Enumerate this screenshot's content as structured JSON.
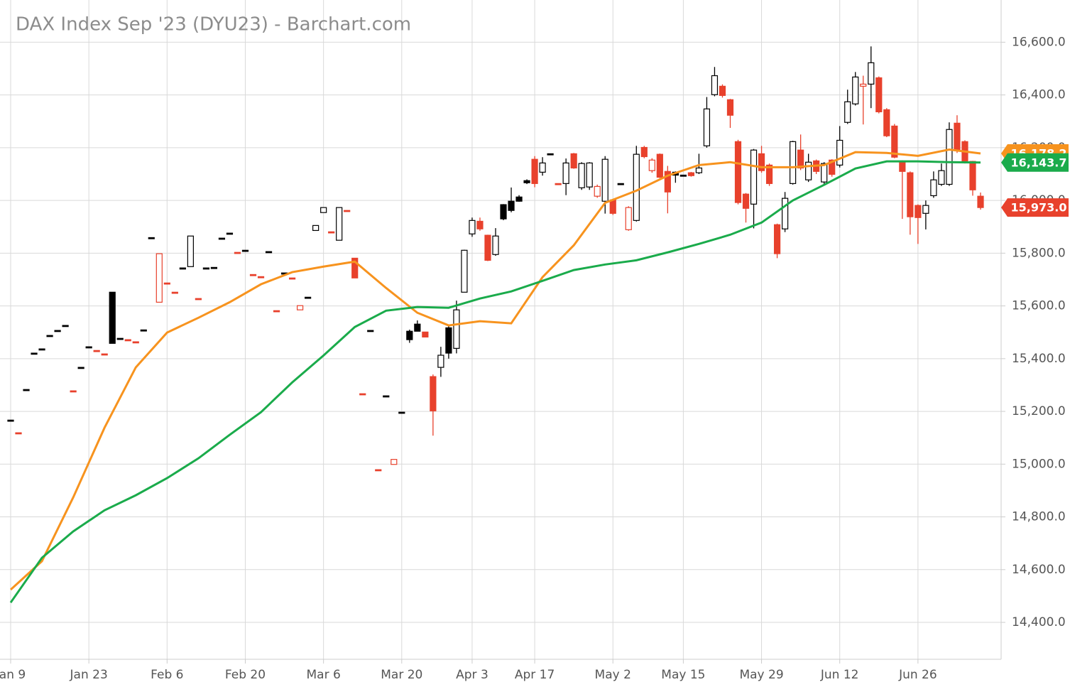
{
  "chart_data": {
    "type": "candlestick",
    "title": "DAX Index Sep '23 (DYU23) - Barchart.com",
    "categories": [
      "Jan 9",
      null,
      null,
      null,
      null,
      null,
      null,
      null,
      null,
      null,
      "Jan 23",
      null,
      null,
      null,
      null,
      null,
      null,
      null,
      null,
      null,
      "Feb 6",
      null,
      null,
      null,
      null,
      null,
      null,
      null,
      null,
      null,
      "Feb 20",
      null,
      null,
      null,
      null,
      null,
      null,
      null,
      null,
      null,
      "Mar 6",
      null,
      null,
      null,
      null,
      null,
      null,
      null,
      null,
      null,
      "Mar 20",
      null,
      null,
      null,
      null,
      null,
      null,
      null,
      null,
      "Apr 3",
      null,
      null,
      null,
      null,
      null,
      null,
      null,
      "Apr 17",
      null,
      null,
      null,
      null,
      null,
      null,
      null,
      null,
      null,
      "May 2",
      null,
      null,
      null,
      null,
      null,
      null,
      null,
      null,
      "May 15",
      null,
      null,
      null,
      null,
      null,
      null,
      null,
      null,
      null,
      "May 29",
      null,
      null,
      null,
      null,
      null,
      null,
      null,
      null,
      null,
      "Jun 12",
      null,
      null,
      null,
      null,
      null,
      null,
      null,
      null,
      null,
      "Jun 26",
      null,
      null,
      null,
      null,
      null,
      null,
      null,
      null
    ],
    "open": [
      15167,
      15119,
      15283,
      15421,
      15437,
      15488,
      15507,
      15526,
      15278,
      15367,
      15445,
      15431,
      15418,
      15652,
      15477,
      15472,
      15464,
      15509,
      15859,
      15614,
      15687,
      15652,
      15744,
      15749,
      15628,
      15744,
      15746,
      15857,
      15876,
      15803,
      15811,
      15719,
      15711,
      15806,
      15582,
      15725,
      15706,
      15585,
      15633,
      15886,
      15954,
      15881,
      15849,
      15962,
      15781,
      15267,
      15507,
      14979,
      15259,
      14999,
      15197,
      15504,
      15531,
      15501,
      15332,
      15367,
      15517,
      15439,
      15652,
      15873,
      15921,
      15868,
      15795,
      15984,
      15997,
      16013,
      16075,
      16156,
      16107,
      16177,
      16064,
      16064,
      16177,
      16048,
      16051,
      16016,
      15997,
      16002,
      16064,
      15889,
      15924,
      16201,
      16113,
      16175,
      16110,
      16107,
      16096,
      16105,
      16105,
      16207,
      16401,
      16433,
      16382,
      16223,
      16024,
      15986,
      16177,
      16134,
      15908,
      15892,
      16064,
      16191,
      16078,
      16150,
      16070,
      16153,
      16134,
      16296,
      16366,
      16433,
      16441,
      16465,
      16344,
      16282,
      16148,
      16105,
      15981,
      15951,
      16018,
      16061,
      16061,
      16293,
      16223,
      16148,
      16016
    ],
    "high": [
      15167,
      15119,
      15283,
      15421,
      15437,
      15488,
      15507,
      15526,
      15278,
      15367,
      15445,
      15431,
      15418,
      15652,
      15477,
      15472,
      15464,
      15509,
      15859,
      15798,
      15687,
      15652,
      15744,
      15865,
      15628,
      15744,
      15746,
      15857,
      15876,
      15803,
      15811,
      15719,
      15711,
      15806,
      15582,
      15725,
      15706,
      15601,
      15633,
      15905,
      15973,
      15881,
      15973,
      15962,
      15781,
      15267,
      15507,
      14979,
      15259,
      15018,
      15197,
      15510,
      15545,
      15501,
      15340,
      15445,
      15523,
      15620,
      15813,
      15935,
      15935,
      15870,
      15895,
      15986,
      16049,
      16020,
      16080,
      16168,
      16164,
      16177,
      16064,
      16159,
      16180,
      16145,
      16145,
      16060,
      16168,
      16005,
      16064,
      15978,
      16207,
      16207,
      16160,
      16178,
      16131,
      16110,
      16096,
      16108,
      16177,
      16392,
      16506,
      16440,
      16385,
      16230,
      16028,
      16195,
      16207,
      16140,
      15912,
      16032,
      16226,
      16250,
      16177,
      16155,
      16145,
      16156,
      16282,
      16420,
      16487,
      16473,
      16584,
      16470,
      16350,
      16290,
      16152,
      16110,
      15985,
      16000,
      16110,
      16140,
      16296,
      16323,
      16228,
      16150,
      16030
    ],
    "low": [
      15167,
      15119,
      15283,
      15421,
      15437,
      15488,
      15507,
      15526,
      15278,
      15367,
      15445,
      15431,
      15418,
      15458,
      15477,
      15472,
      15464,
      15509,
      15859,
      15614,
      15687,
      15652,
      15744,
      15749,
      15628,
      15744,
      15746,
      15857,
      15876,
      15803,
      15811,
      15719,
      15711,
      15806,
      15582,
      15725,
      15706,
      15585,
      15633,
      15886,
      15954,
      15881,
      15849,
      15962,
      15706,
      15267,
      15507,
      14979,
      15259,
      14999,
      15197,
      15460,
      15504,
      15482,
      15108,
      15331,
      15400,
      15420,
      15652,
      15862,
      15885,
      15770,
      15790,
      15925,
      15955,
      15995,
      16062,
      16050,
      16094,
      16177,
      16064,
      16020,
      16120,
      16040,
      16040,
      16010,
      15950,
      15945,
      16064,
      15885,
      15920,
      16160,
      16105,
      16085,
      15951,
      16067,
      16096,
      16090,
      16100,
      16200,
      16395,
      16390,
      16275,
      15985,
      15916,
      15894,
      16105,
      16055,
      15781,
      15880,
      16060,
      16115,
      16070,
      16100,
      16060,
      16090,
      16125,
      16290,
      16360,
      16288,
      16350,
      16330,
      16240,
      16160,
      15930,
      15870,
      15835,
      15890,
      16010,
      16055,
      16055,
      16180,
      16140,
      16018,
      15965
    ],
    "close": [
      15167,
      15119,
      15283,
      15421,
      15437,
      15488,
      15507,
      15526,
      15278,
      15367,
      15445,
      15431,
      15418,
      15458,
      15477,
      15472,
      15464,
      15509,
      15859,
      15798,
      15687,
      15652,
      15744,
      15865,
      15628,
      15744,
      15746,
      15857,
      15876,
      15803,
      15811,
      15719,
      15711,
      15806,
      15582,
      15725,
      15706,
      15601,
      15633,
      15905,
      15973,
      15881,
      15973,
      15962,
      15706,
      15267,
      15507,
      14979,
      15259,
      15018,
      15197,
      15472,
      15504,
      15482,
      15202,
      15413,
      15421,
      15585,
      15811,
      15924,
      15892,
      15773,
      15865,
      15930,
      15962,
      15997,
      16067,
      16064,
      16142,
      16177,
      16064,
      16142,
      16123,
      16140,
      16142,
      16053,
      16156,
      15951,
      16064,
      15973,
      16175,
      16166,
      16153,
      16088,
      16032,
      16096,
      16096,
      16094,
      16123,
      16347,
      16473,
      16398,
      16323,
      15992,
      15970,
      16191,
      16113,
      16064,
      15798,
      16008,
      16223,
      16123,
      16145,
      16110,
      16140,
      16099,
      16228,
      16374,
      16468,
      16441,
      16522,
      16336,
      16245,
      16164,
      16110,
      15938,
      15935,
      15981,
      16078,
      16113,
      16269,
      16191,
      16150,
      16040,
      15973
    ],
    "last_label": "15,973.0",
    "up_color": "#000000",
    "down_color": "#e8412c",
    "lines": [
      {
        "color": "#f7931e",
        "value_label": "16,178.2",
        "x": [
          0,
          4,
          8,
          12,
          16,
          20,
          24,
          28,
          32,
          36,
          40,
          44,
          48,
          52,
          56,
          60,
          64,
          68,
          72,
          76,
          80,
          84,
          88,
          92,
          96,
          100,
          104,
          108,
          112,
          116,
          120,
          124
        ],
        "values": [
          14524,
          14632,
          14874,
          15138,
          15367,
          15499,
          15555,
          15614,
          15682,
          15728,
          15749,
          15768,
          15668,
          15574,
          15526,
          15542,
          15534,
          15709,
          15830,
          15991,
          16037,
          16094,
          16134,
          16145,
          16126,
          16126,
          16134,
          16183,
          16180,
          16169,
          16193,
          16178.2
        ]
      },
      {
        "color": "#1aab4b",
        "value_label": "16,143.7",
        "x": [
          0,
          4,
          8,
          12,
          16,
          20,
          24,
          28,
          32,
          36,
          40,
          44,
          48,
          52,
          56,
          60,
          64,
          68,
          72,
          76,
          80,
          84,
          88,
          92,
          96,
          100,
          104,
          108,
          112,
          116,
          120,
          124
        ],
        "values": [
          14475,
          14645,
          14745,
          14825,
          14882,
          14947,
          15022,
          15111,
          15197,
          15310,
          15412,
          15520,
          15582,
          15596,
          15593,
          15628,
          15655,
          15695,
          15736,
          15757,
          15773,
          15803,
          15835,
          15870,
          15916,
          16000,
          16059,
          16121,
          16148,
          16148,
          16145,
          16143.7
        ]
      }
    ],
    "ylim": [
      14260,
      16760
    ],
    "yticks": [
      {
        "value": 14400,
        "label": "14,400.0"
      },
      {
        "value": 14600,
        "label": "14,600.0"
      },
      {
        "value": 14800,
        "label": "14,800.0"
      },
      {
        "value": 15000,
        "label": "15,000.0"
      },
      {
        "value": 15200,
        "label": "15,200.0"
      },
      {
        "value": 15400,
        "label": "15,400.0"
      },
      {
        "value": 15600,
        "label": "15,600.0"
      },
      {
        "value": 15800,
        "label": "15,800.0"
      },
      {
        "value": 16000,
        "label": "16,000.0"
      },
      {
        "value": 16200,
        "label": "16,200.0"
      },
      {
        "value": 16400,
        "label": "16,400.0"
      },
      {
        "value": 16600,
        "label": "16,600.0"
      }
    ],
    "grid": true
  }
}
